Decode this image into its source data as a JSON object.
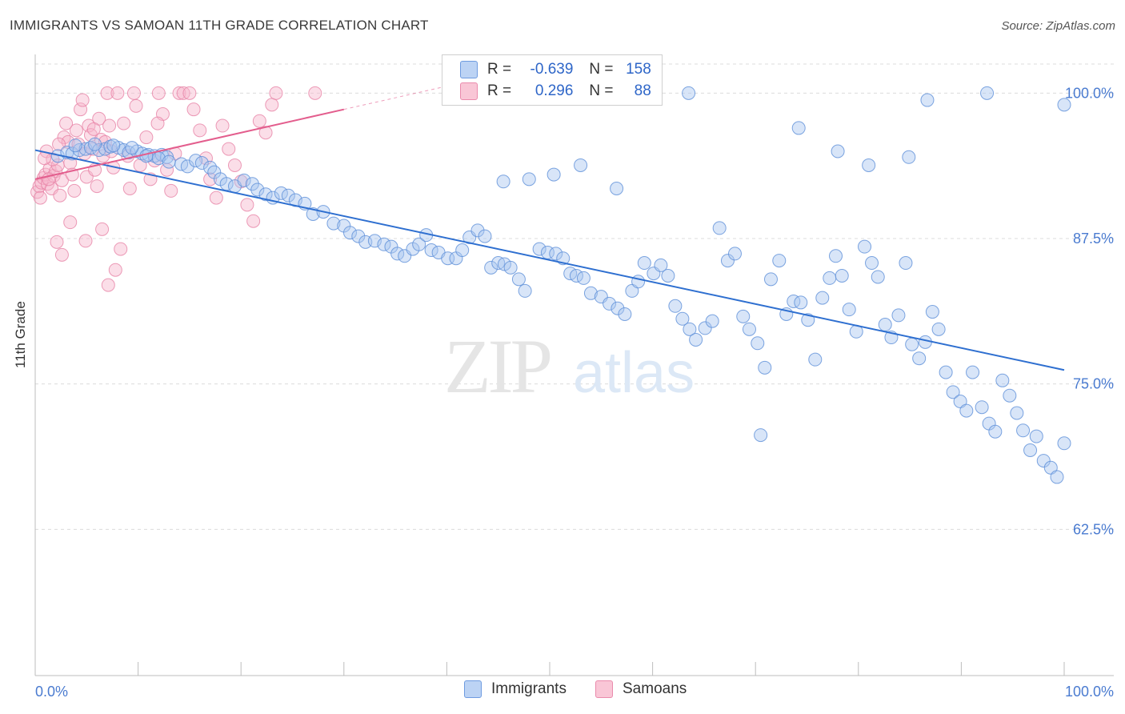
{
  "header": {
    "title": "IMMIGRANTS VS SAMOAN 11TH GRADE CORRELATION CHART",
    "source": "Source: ZipAtlas.com"
  },
  "watermark": "ZIPatlas",
  "legend": {
    "rows": [
      {
        "r_label": "R =",
        "r_value": "-0.639",
        "n_label": "N =",
        "n_value": "158"
      },
      {
        "r_label": "R =",
        "r_value": "0.296",
        "n_label": "N =",
        "n_value": "88"
      }
    ]
  },
  "colors": {
    "immigrants_fill": "#a9c6f0",
    "immigrants_stroke": "#5d8fd8",
    "immigrants_line": "#2e6fd0",
    "samoans_fill": "#f7b6cb",
    "samoans_stroke": "#e783a6",
    "samoans_line": "#e35d8d",
    "tick_text": "#4a7bd0"
  },
  "chart_data": {
    "type": "scatter",
    "title": "IMMIGRANTS VS SAMOAN 11TH GRADE CORRELATION CHART",
    "xlabel": "",
    "ylabel": "11th Grade",
    "xlim": [
      0,
      100
    ],
    "ylim": [
      50,
      102.5
    ],
    "x_tick_labels": [
      "0.0%",
      "100.0%"
    ],
    "y_ticks": [
      {
        "value": 100.0,
        "label": "100.0%"
      },
      {
        "value": 87.5,
        "label": "87.5%"
      },
      {
        "value": 75.0,
        "label": "75.0%"
      },
      {
        "value": 62.5,
        "label": "62.5%"
      }
    ],
    "grid": "horizontal dashed",
    "legend_position": "bottom",
    "series": [
      {
        "name": "Immigrants",
        "r": -0.639,
        "n": 158,
        "trend": {
          "x": [
            0,
            100
          ],
          "y": [
            95.1,
            76.2
          ]
        },
        "points": [
          [
            2.2,
            94.6
          ],
          [
            3.1,
            94.9
          ],
          [
            3.6,
            94.8
          ],
          [
            4.3,
            95.1
          ],
          [
            4.9,
            95.2
          ],
          [
            5.4,
            95.3
          ],
          [
            6.2,
            95.1
          ],
          [
            6.8,
            95.2
          ],
          [
            7.3,
            95.4
          ],
          [
            8.1,
            95.3
          ],
          [
            8.6,
            95.1
          ],
          [
            9.1,
            94.9
          ],
          [
            9.9,
            95.0
          ],
          [
            10.4,
            94.8
          ],
          [
            11.0,
            94.7
          ],
          [
            11.6,
            94.6
          ],
          [
            12.3,
            94.7
          ],
          [
            12.8,
            94.5
          ],
          [
            3.9,
            95.5
          ],
          [
            5.8,
            95.6
          ],
          [
            7.6,
            95.5
          ],
          [
            9.4,
            95.3
          ],
          [
            10.8,
            94.6
          ],
          [
            12.0,
            94.4
          ],
          [
            13.0,
            94.1
          ],
          [
            14.2,
            93.9
          ],
          [
            14.8,
            93.7
          ],
          [
            15.6,
            94.2
          ],
          [
            16.2,
            94.0
          ],
          [
            17.0,
            93.6
          ],
          [
            17.4,
            93.2
          ],
          [
            18.0,
            92.6
          ],
          [
            18.6,
            92.2
          ],
          [
            19.4,
            92.0
          ],
          [
            20.3,
            92.5
          ],
          [
            21.1,
            92.2
          ],
          [
            21.6,
            91.7
          ],
          [
            22.4,
            91.3
          ],
          [
            23.1,
            91.0
          ],
          [
            23.9,
            91.4
          ],
          [
            24.6,
            91.2
          ],
          [
            25.3,
            90.8
          ],
          [
            26.2,
            90.5
          ],
          [
            27.0,
            89.6
          ],
          [
            28.0,
            89.8
          ],
          [
            29.0,
            88.8
          ],
          [
            30.0,
            88.6
          ],
          [
            30.6,
            88.0
          ],
          [
            31.4,
            87.7
          ],
          [
            32.1,
            87.2
          ],
          [
            33.0,
            87.3
          ],
          [
            33.9,
            87.0
          ],
          [
            34.6,
            86.8
          ],
          [
            35.2,
            86.2
          ],
          [
            35.9,
            86.0
          ],
          [
            36.7,
            86.6
          ],
          [
            37.3,
            87.0
          ],
          [
            38.0,
            87.8
          ],
          [
            38.5,
            86.5
          ],
          [
            39.2,
            86.3
          ],
          [
            40.1,
            85.8
          ],
          [
            40.9,
            85.8
          ],
          [
            41.5,
            86.5
          ],
          [
            42.2,
            87.6
          ],
          [
            43.0,
            88.2
          ],
          [
            43.7,
            87.7
          ],
          [
            44.3,
            85.0
          ],
          [
            45.0,
            85.4
          ],
          [
            45.6,
            85.3
          ],
          [
            46.2,
            85.0
          ],
          [
            47.0,
            84.0
          ],
          [
            47.6,
            83.0
          ],
          [
            49.0,
            86.6
          ],
          [
            49.8,
            86.3
          ],
          [
            50.6,
            86.2
          ],
          [
            51.3,
            85.8
          ],
          [
            52.0,
            84.5
          ],
          [
            52.6,
            84.3
          ],
          [
            53.3,
            84.1
          ],
          [
            54.0,
            82.8
          ],
          [
            55.0,
            82.5
          ],
          [
            55.8,
            81.9
          ],
          [
            56.6,
            81.5
          ],
          [
            57.3,
            81.0
          ],
          [
            58.0,
            83.0
          ],
          [
            58.6,
            83.8
          ],
          [
            59.2,
            85.4
          ],
          [
            60.1,
            84.5
          ],
          [
            60.8,
            85.2
          ],
          [
            61.5,
            84.3
          ],
          [
            62.2,
            81.7
          ],
          [
            62.9,
            80.6
          ],
          [
            63.6,
            79.7
          ],
          [
            64.2,
            78.8
          ],
          [
            65.1,
            79.8
          ],
          [
            65.8,
            80.4
          ],
          [
            66.5,
            88.4
          ],
          [
            67.3,
            85.6
          ],
          [
            68.0,
            86.2
          ],
          [
            68.8,
            80.8
          ],
          [
            69.4,
            79.7
          ],
          [
            70.2,
            78.5
          ],
          [
            70.9,
            76.4
          ],
          [
            71.5,
            84.0
          ],
          [
            72.3,
            85.6
          ],
          [
            73.0,
            81.0
          ],
          [
            73.7,
            82.1
          ],
          [
            74.4,
            82.0
          ],
          [
            75.1,
            80.5
          ],
          [
            75.8,
            77.1
          ],
          [
            76.5,
            82.4
          ],
          [
            77.2,
            84.1
          ],
          [
            77.8,
            86.0
          ],
          [
            78.4,
            84.3
          ],
          [
            79.1,
            81.4
          ],
          [
            79.8,
            79.5
          ],
          [
            80.6,
            86.8
          ],
          [
            81.3,
            85.4
          ],
          [
            81.9,
            84.2
          ],
          [
            82.6,
            80.1
          ],
          [
            83.2,
            79.0
          ],
          [
            83.9,
            80.9
          ],
          [
            84.6,
            85.4
          ],
          [
            85.2,
            78.4
          ],
          [
            85.9,
            77.2
          ],
          [
            86.5,
            78.6
          ],
          [
            87.2,
            81.2
          ],
          [
            87.8,
            79.7
          ],
          [
            88.5,
            76.0
          ],
          [
            89.2,
            74.3
          ],
          [
            89.9,
            73.5
          ],
          [
            90.5,
            72.7
          ],
          [
            91.1,
            76.0
          ],
          [
            92.0,
            73.0
          ],
          [
            92.7,
            71.6
          ],
          [
            93.3,
            70.9
          ],
          [
            94.0,
            75.3
          ],
          [
            94.7,
            74.0
          ],
          [
            95.4,
            72.5
          ],
          [
            96.0,
            71.0
          ],
          [
            96.7,
            69.3
          ],
          [
            97.3,
            70.5
          ],
          [
            98.0,
            68.4
          ],
          [
            98.7,
            67.8
          ],
          [
            99.3,
            67.0
          ],
          [
            70.5,
            70.6
          ],
          [
            100.0,
            69.9
          ],
          [
            100.0,
            99.0
          ],
          [
            92.5,
            100.0
          ],
          [
            63.5,
            100.0
          ],
          [
            78.0,
            95.0
          ],
          [
            81.0,
            93.8
          ],
          [
            74.2,
            97.0
          ],
          [
            84.9,
            94.5
          ],
          [
            86.7,
            99.4
          ],
          [
            53.0,
            93.8
          ],
          [
            56.5,
            91.8
          ],
          [
            50.4,
            93.0
          ],
          [
            48.0,
            92.6
          ],
          [
            45.5,
            92.4
          ]
        ]
      },
      {
        "name": "Samoans",
        "r": 0.296,
        "n": 88,
        "trend": {
          "x": [
            0,
            30
          ],
          "y": [
            92.6,
            98.6
          ]
        },
        "points": [
          [
            0.2,
            91.5
          ],
          [
            0.4,
            92.0
          ],
          [
            0.6,
            92.3
          ],
          [
            0.8,
            92.7
          ],
          [
            1.0,
            93.0
          ],
          [
            1.2,
            92.2
          ],
          [
            1.4,
            93.5
          ],
          [
            1.6,
            91.8
          ],
          [
            1.8,
            92.9
          ],
          [
            2.0,
            93.3
          ],
          [
            2.2,
            93.8
          ],
          [
            2.4,
            91.2
          ],
          [
            2.6,
            92.5
          ],
          [
            2.8,
            96.2
          ],
          [
            3.0,
            97.4
          ],
          [
            3.2,
            95.8
          ],
          [
            3.4,
            94.0
          ],
          [
            3.6,
            93.0
          ],
          [
            3.8,
            91.6
          ],
          [
            4.0,
            96.8
          ],
          [
            4.2,
            95.6
          ],
          [
            4.4,
            98.6
          ],
          [
            4.6,
            99.4
          ],
          [
            4.8,
            94.8
          ],
          [
            5.0,
            92.8
          ],
          [
            5.2,
            97.2
          ],
          [
            5.4,
            96.4
          ],
          [
            5.6,
            95.2
          ],
          [
            5.8,
            93.4
          ],
          [
            6.0,
            92.0
          ],
          [
            6.2,
            97.8
          ],
          [
            6.4,
            96.0
          ],
          [
            6.6,
            94.6
          ],
          [
            6.8,
            95.8
          ],
          [
            7.0,
            100.0
          ],
          [
            7.2,
            97.2
          ],
          [
            7.4,
            95.0
          ],
          [
            7.6,
            93.6
          ],
          [
            8.0,
            100.0
          ],
          [
            8.6,
            97.4
          ],
          [
            9.0,
            94.6
          ],
          [
            9.2,
            91.8
          ],
          [
            9.6,
            100.0
          ],
          [
            10.2,
            93.8
          ],
          [
            10.8,
            96.2
          ],
          [
            11.2,
            92.6
          ],
          [
            11.6,
            94.2
          ],
          [
            12.0,
            100.0
          ],
          [
            12.4,
            98.2
          ],
          [
            12.8,
            93.4
          ],
          [
            13.2,
            91.6
          ],
          [
            13.6,
            94.8
          ],
          [
            14.0,
            100.0
          ],
          [
            14.4,
            100.0
          ],
          [
            15.0,
            100.0
          ],
          [
            15.4,
            98.6
          ],
          [
            16.0,
            96.8
          ],
          [
            16.6,
            94.4
          ],
          [
            17.0,
            92.6
          ],
          [
            17.6,
            91.0
          ],
          [
            18.2,
            97.2
          ],
          [
            18.8,
            95.2
          ],
          [
            19.4,
            93.8
          ],
          [
            20.0,
            92.4
          ],
          [
            20.6,
            90.4
          ],
          [
            21.2,
            89.0
          ],
          [
            21.8,
            97.6
          ],
          [
            22.4,
            96.6
          ],
          [
            23.0,
            99.0
          ],
          [
            23.4,
            100.0
          ],
          [
            2.1,
            87.2
          ],
          [
            2.6,
            86.1
          ],
          [
            3.4,
            88.9
          ],
          [
            4.9,
            87.3
          ],
          [
            6.5,
            88.3
          ],
          [
            7.1,
            83.5
          ],
          [
            7.8,
            84.8
          ],
          [
            8.3,
            86.6
          ],
          [
            27.2,
            100.0
          ],
          [
            1.1,
            95.0
          ],
          [
            1.7,
            94.3
          ],
          [
            2.3,
            95.6
          ],
          [
            0.5,
            91.0
          ],
          [
            0.9,
            94.4
          ],
          [
            1.3,
            92.6
          ],
          [
            5.7,
            96.9
          ],
          [
            9.8,
            98.9
          ],
          [
            11.9,
            97.4
          ]
        ]
      }
    ]
  },
  "bottom_legend": {
    "immigrants_label": "Immigrants",
    "samoans_label": "Samoans"
  }
}
